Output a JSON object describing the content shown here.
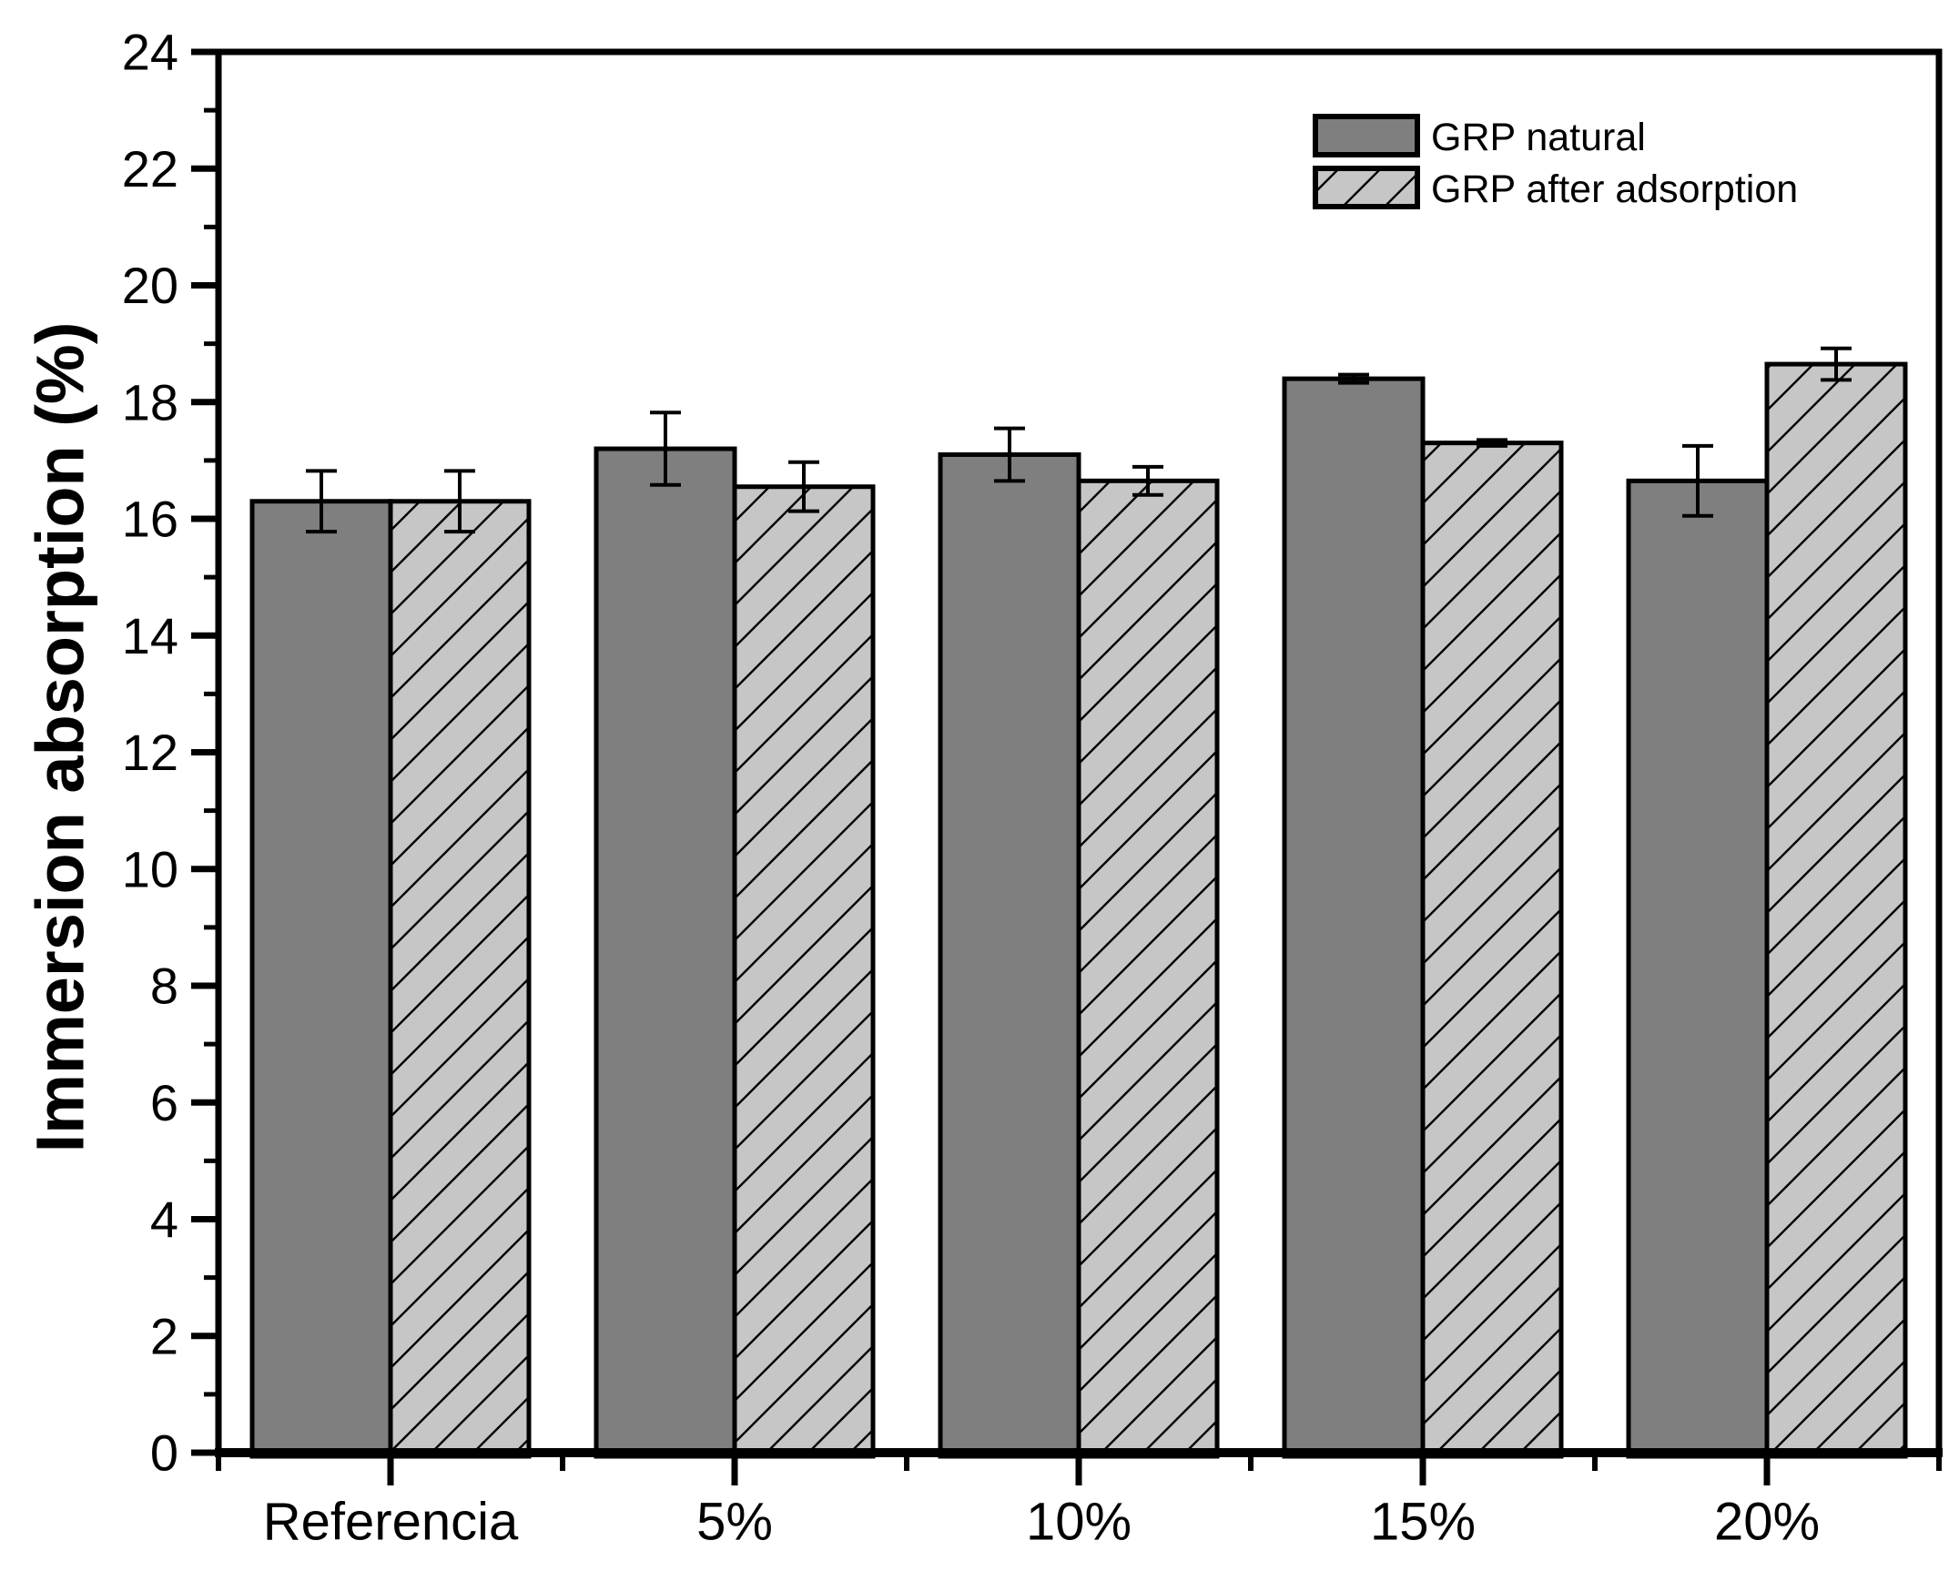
{
  "figure": {
    "background": "#ffffff"
  },
  "chart_data": {
    "type": "bar",
    "title": "",
    "xlabel": "",
    "ylabel": "Immersion absorption (%)",
    "categories": [
      "Referencia",
      "5%",
      "10%",
      "15%",
      "20%"
    ],
    "series": [
      {
        "name": "GRP natural",
        "style": "solid",
        "fill": "#7f7f7f",
        "values": [
          16.3,
          17.2,
          17.1,
          18.4,
          16.65
        ],
        "errors": [
          0.52,
          0.62,
          0.45,
          0.07,
          0.6
        ]
      },
      {
        "name": "GRP after adsorption",
        "style": "hatched",
        "hatch": "diagonal-forward",
        "fill": "#c6c6c6",
        "values": [
          16.3,
          16.55,
          16.65,
          17.3,
          18.65
        ],
        "errors": [
          0.52,
          0.42,
          0.24,
          0.05,
          0.27
        ]
      }
    ],
    "ylim": [
      0,
      24
    ],
    "ytick_major_step": 2,
    "ytick_minor_step": 1,
    "grid": false,
    "legend_position": "top-right",
    "bar_outline_color": "#000000",
    "error_bar_color": "#000000",
    "axis_color": "#000000"
  }
}
